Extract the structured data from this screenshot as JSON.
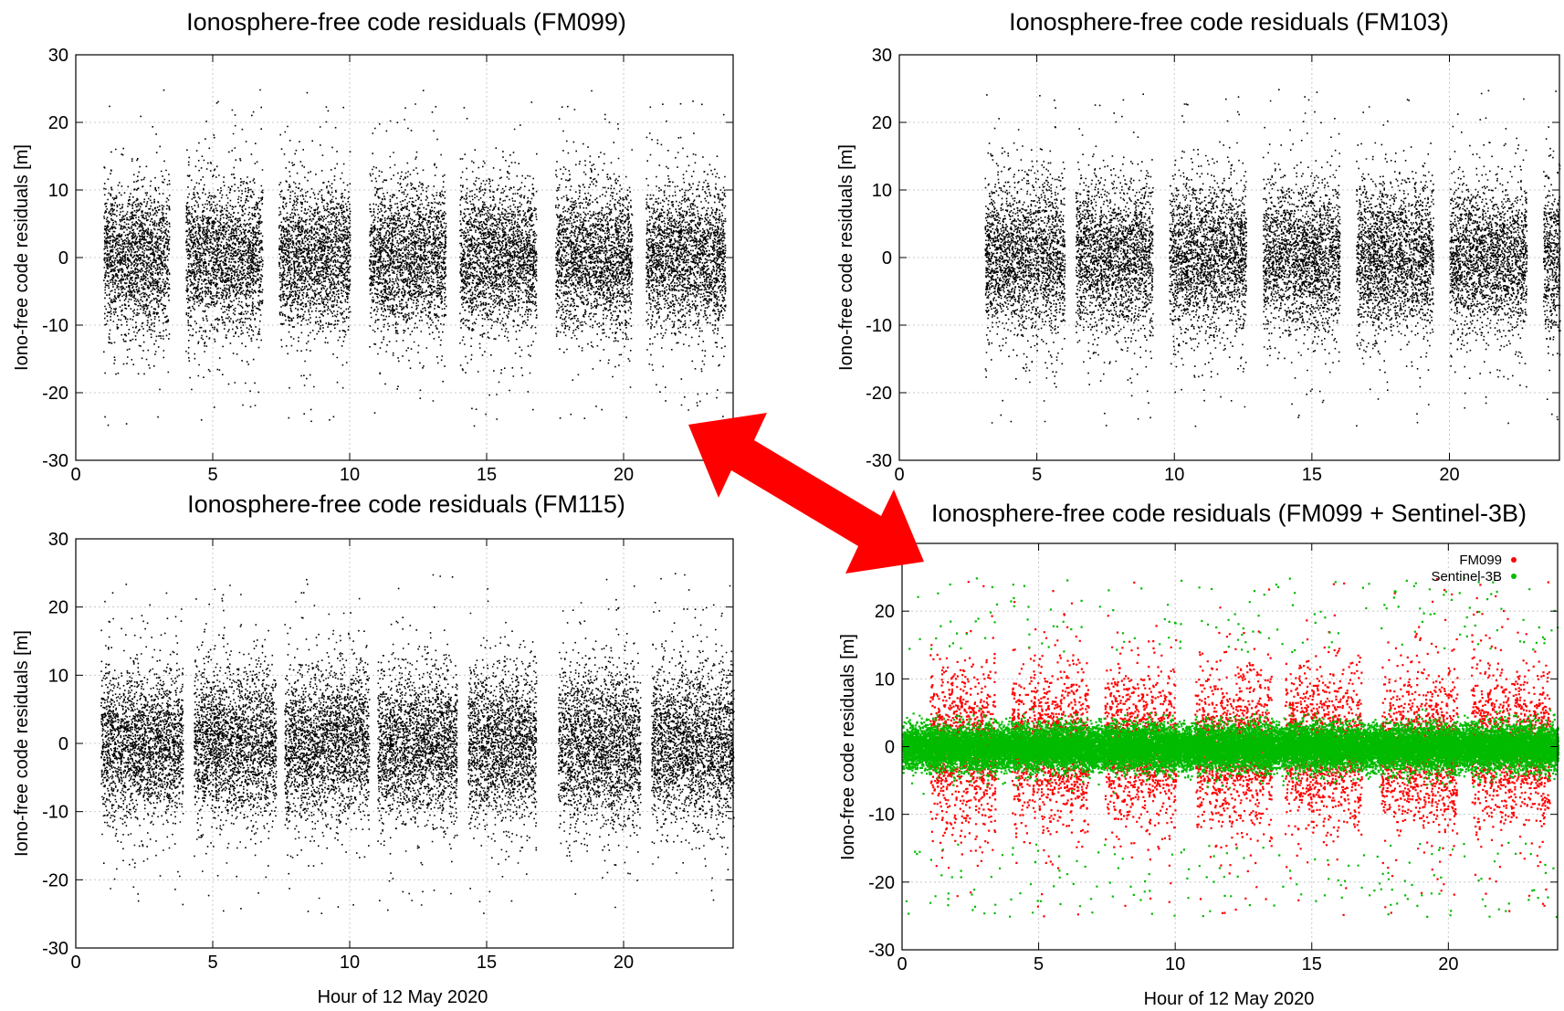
{
  "figure": {
    "arrow_color": "#ff0000",
    "arrow_icon": "double-headed-arrow"
  },
  "chart_data": [
    {
      "id": "fm099",
      "type": "scatter",
      "title": "Ionosphere-free code residuals (FM099)",
      "xlabel": "",
      "ylabel": "Iono-free code residuals [m]",
      "xlim": [
        0,
        24
      ],
      "ylim": [
        -30,
        30
      ],
      "xticks": [
        0,
        5,
        10,
        15,
        20
      ],
      "yticks": [
        -30,
        -20,
        -10,
        0,
        10,
        20,
        30
      ],
      "grid": true,
      "legend": null,
      "series": [
        {
          "color": "#000000",
          "spread_m": 6.5,
          "segments": [
            [
              1.0,
              3.4
            ],
            [
              4.0,
              6.8
            ],
            [
              7.4,
              10.0
            ],
            [
              10.7,
              13.5
            ],
            [
              14.0,
              16.8
            ],
            [
              17.5,
              20.3
            ],
            [
              20.8,
              23.7
            ]
          ]
        }
      ]
    },
    {
      "id": "fm103",
      "type": "scatter",
      "title": "Ionosphere-free code residuals (FM103)",
      "xlabel": "",
      "ylabel": "Iono-free code residuals [m]",
      "xlim": [
        0,
        24
      ],
      "ylim": [
        -30,
        30
      ],
      "xticks": [
        0,
        5,
        10,
        15,
        20
      ],
      "yticks": [
        -30,
        -20,
        -10,
        0,
        10,
        20,
        30
      ],
      "grid": true,
      "legend": null,
      "series": [
        {
          "color": "#000000",
          "spread_m": 6.5,
          "segments": [
            [
              3.1,
              6.0
            ],
            [
              6.4,
              9.2
            ],
            [
              9.8,
              12.6
            ],
            [
              13.2,
              16.0
            ],
            [
              16.6,
              19.4
            ],
            [
              20.0,
              22.8
            ],
            [
              23.4,
              24.0
            ]
          ]
        }
      ]
    },
    {
      "id": "fm115",
      "type": "scatter",
      "title": "Ionosphere-free code residuals (FM115)",
      "xlabel": "Hour of 12 May 2020",
      "ylabel": "Iono-free code residuals [m]",
      "xlim": [
        0,
        24
      ],
      "ylim": [
        -30,
        30
      ],
      "xticks": [
        0,
        5,
        10,
        15,
        20
      ],
      "yticks": [
        -30,
        -20,
        -10,
        0,
        10,
        20,
        30
      ],
      "grid": true,
      "legend": null,
      "series": [
        {
          "color": "#000000",
          "spread_m": 6.5,
          "segments": [
            [
              0.9,
              3.9
            ],
            [
              4.3,
              7.3
            ],
            [
              7.6,
              10.7
            ],
            [
              11.0,
              13.9
            ],
            [
              14.3,
              16.8
            ],
            [
              17.6,
              20.6
            ],
            [
              21.0,
              24.0
            ]
          ]
        }
      ]
    },
    {
      "id": "fm099-sentinel",
      "type": "scatter",
      "title": "Ionosphere-free code residuals (FM099 + Sentinel-3B)",
      "xlabel": "Hour of 12 May 2020",
      "ylabel": "Iono-free code residuals [m]",
      "xlim": [
        0,
        24
      ],
      "ylim": [
        -30,
        30
      ],
      "xticks": [
        0,
        5,
        10,
        15,
        20
      ],
      "yticks": [
        -30,
        -20,
        -10,
        0,
        10,
        20
      ],
      "grid": true,
      "legend": "top-right",
      "series": [
        {
          "name": "FM099",
          "color": "#ff0000",
          "spread_m": 6.5,
          "segments": [
            [
              1.0,
              3.4
            ],
            [
              4.0,
              6.8
            ],
            [
              7.4,
              10.0
            ],
            [
              10.7,
              13.5
            ],
            [
              14.0,
              16.8
            ],
            [
              17.5,
              20.3
            ],
            [
              20.8,
              23.7
            ]
          ]
        },
        {
          "name": "Sentinel-3B",
          "color": "#00bb00",
          "spread_m": 1.8,
          "segments": [
            [
              0.0,
              24.0
            ]
          ]
        }
      ]
    }
  ]
}
